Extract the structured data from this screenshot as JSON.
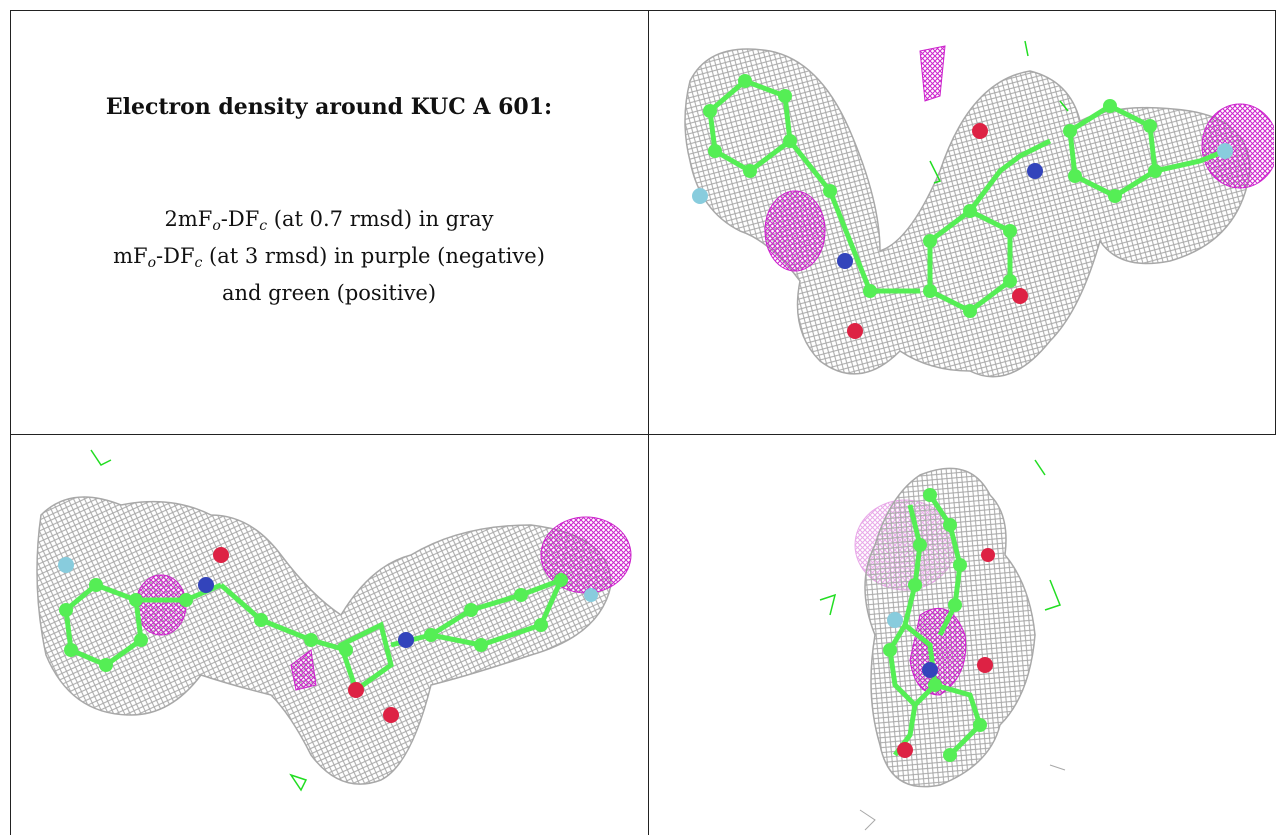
{
  "caption": {
    "title": "Electron density around KUC A 601:",
    "line1": {
      "prefix": "2mF",
      "sub1": "o",
      "mid": "-DF",
      "sub2": "c",
      "suffix": " (at 0.7 rmsd) in gray"
    },
    "line2": {
      "prefix": "mF",
      "sub1": "o",
      "mid": "-DF",
      "sub2": "c",
      "suffix": " (at 3 rmsd) in purple (negative)"
    },
    "line3": "and green (positive)"
  },
  "colors": {
    "mesh_2fofc": "#a8a8a8",
    "mesh_negative": "#cc22cc",
    "mesh_positive": "#22dd22",
    "carbon": "#55ee55",
    "oxygen": "#dd2244",
    "nitrogen": "#3344bb",
    "fluorine": "#88ccdd"
  },
  "panels": [
    {
      "view": "top-right"
    },
    {
      "view": "bottom-left"
    },
    {
      "view": "bottom-right"
    }
  ]
}
